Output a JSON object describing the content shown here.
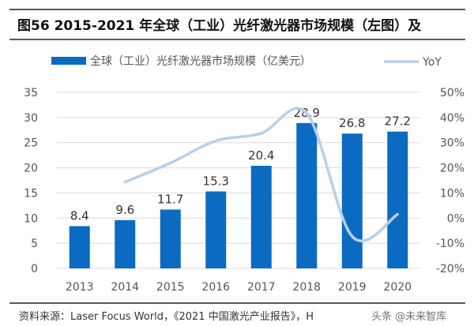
{
  "header": {
    "title": "图56 2015-2021 年全球（工业）光纤激光器市场规模（左图）及"
  },
  "footer": {
    "source": "资料来源：Laser Focus World，《2021 中国激光产业报告》，H",
    "watermark": "头条 @未来智库"
  },
  "colors": {
    "bar": "#0B6BC2",
    "line": "#B7D0EA",
    "grid": "#D9D9D9",
    "rule": "#222222"
  },
  "chart_data": {
    "type": "bar",
    "title": "图56 2015-2021 年全球（工业）光纤激光器市场规模（左图）及",
    "categories": [
      "2013",
      "2014",
      "2015",
      "2016",
      "2017",
      "2018",
      "2019",
      "2020"
    ],
    "series": [
      {
        "name": "全球（工业）光纤激光器市场规模（亿美元）",
        "type": "bar",
        "axis": "left",
        "values": [
          8.4,
          9.6,
          11.7,
          15.3,
          20.4,
          28.9,
          26.8,
          27.2
        ],
        "labels": [
          "8.4",
          "9.6",
          "11.7",
          "15.3",
          "20.4",
          "28.9",
          "26.8",
          "27.2"
        ]
      },
      {
        "name": "YoY",
        "type": "line",
        "axis": "right",
        "values": [
          null,
          14.3,
          21.9,
          30.7,
          33.7,
          41.7,
          -7.3,
          1.5
        ]
      }
    ],
    "left_axis": {
      "ylim": [
        0,
        35
      ],
      "ticks": [
        "0",
        "5",
        "10",
        "15",
        "20",
        "25",
        "30",
        "35"
      ]
    },
    "right_axis": {
      "ylim": [
        -20,
        50
      ],
      "ticks": [
        "-20%",
        "-10%",
        "0%",
        "10%",
        "20%",
        "30%",
        "40%",
        "50%"
      ]
    },
    "grid": true,
    "legend": {
      "position": "top",
      "entries": [
        "全球（工业）光纤激光器市场规模（亿美元）",
        "YoY"
      ]
    },
    "xlabel": "",
    "ylabel": ""
  }
}
